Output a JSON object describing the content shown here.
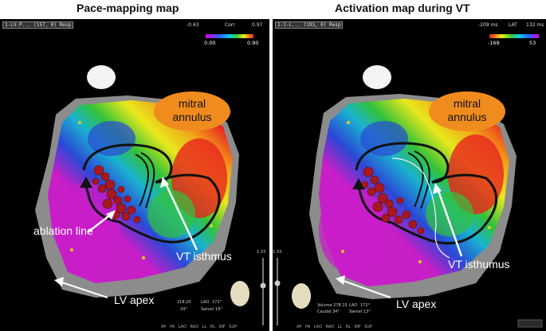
{
  "titles": {
    "left": "Pace-mapping map",
    "right": "Activation map during VT"
  },
  "left_panel": {
    "header": "1-LV-P... (157, 0) Resp",
    "scale": {
      "min_top": "-0.43",
      "name": "Corr",
      "max_top": "0.97",
      "min": "0.00",
      "max": "0.90"
    },
    "mitral": [
      "mitral",
      "annulus"
    ],
    "labels": {
      "ablation": "ablation line",
      "isthmus": "VT isthmus",
      "apex": "LV apex"
    },
    "slider_val": "1.33",
    "stats": {
      "volume": "218.20",
      "lao": "LAO",
      "lao_val": "172°",
      "axis": "24°",
      "sweet": "Swivel",
      "sweet_val": "19°"
    },
    "views": "AP PA LAO RAO LL RL INF SUP"
  },
  "right_panel": {
    "header": "1-1-L... (193, 0) Resp",
    "scale": {
      "min_top": "-209 ms",
      "name": "LAT",
      "max_top": "132 ms",
      "min": "-169",
      "max": "53"
    },
    "mitral": [
      "mitral",
      "annulus"
    ],
    "labels": {
      "isthmus": "VT isthumus",
      "apex": "LV apex"
    },
    "slider_val": "1.33",
    "stats": {
      "volume": "Volume 278.15",
      "lao": "LAO",
      "lao_val": "172°",
      "caudal": "Caudal 34°",
      "sweet": "Swivel",
      "sweet_val": "13°"
    },
    "views": "AP PA LAO RAO LL RL INF SUP"
  },
  "colors": {
    "mitral_fill": "#f08c1e",
    "rainbow": [
      "#e8231e",
      "#f2a21a",
      "#e8e81c",
      "#33c23a",
      "#19b2cf",
      "#2a49d6",
      "#c81ec8"
    ]
  }
}
